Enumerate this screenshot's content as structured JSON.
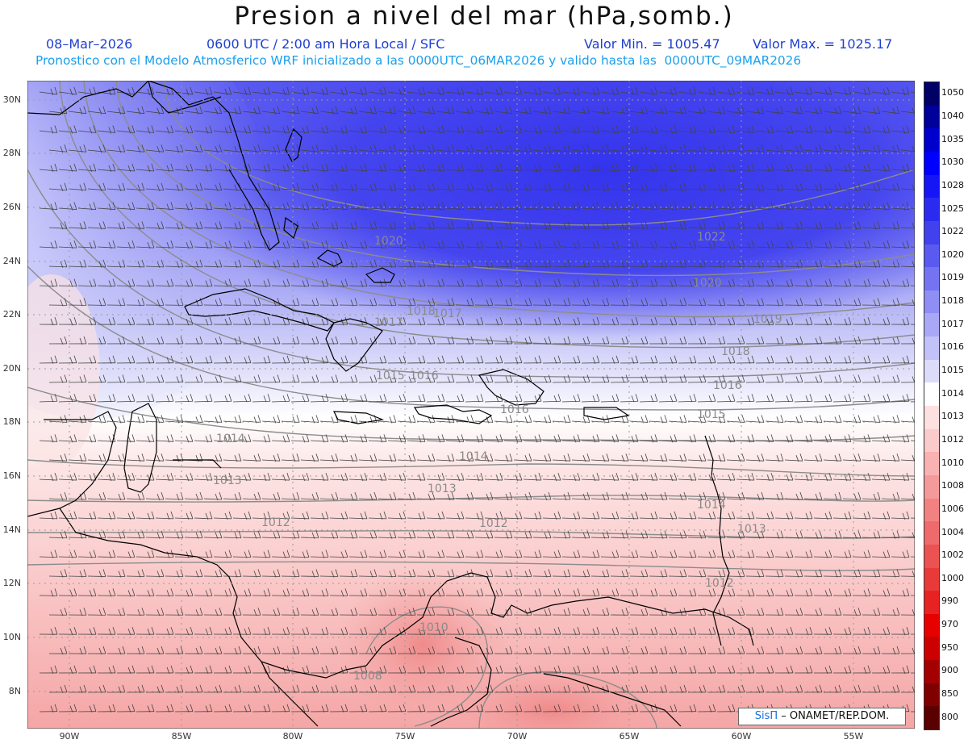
{
  "title": "Presion a nivel del mar (hPa,somb.)",
  "subtitle": {
    "date": "08–Mar–2026",
    "time": "0600 UTC / 2:00 am Hora Local / SFC",
    "min_label": "Valor Min. = 1005.47",
    "max_label": "Valor Max. = 1025.17",
    "model_line": "Pronostico con el Modelo Atmosferico WRF inicializado a las 0000UTC_06MAR2026 y valido hasta las  0000UTC_09MAR2026"
  },
  "lat_labels": [
    "30N",
    "28N",
    "26N",
    "24N",
    "22N",
    "20N",
    "18N",
    "16N",
    "14N",
    "12N",
    "10N",
    "8N"
  ],
  "lon_labels": [
    "90W",
    "85W",
    "80W",
    "75W",
    "70W",
    "65W",
    "60W",
    "55W"
  ],
  "colorbar": {
    "labels": [
      "1050",
      "1040",
      "1035",
      "1030",
      "1028",
      "1025",
      "1022",
      "1020",
      "1019",
      "1018",
      "1017",
      "1016",
      "1015",
      "1014",
      "1013",
      "1012",
      "1010",
      "1008",
      "1006",
      "1004",
      "1002",
      "1000",
      "990",
      "970",
      "950",
      "900",
      "850",
      "800"
    ],
    "colors": [
      "#000066",
      "#00009a",
      "#0000cc",
      "#0000ff",
      "#1515f5",
      "#2b2bf0",
      "#4141ee",
      "#5a5af0",
      "#7474f2",
      "#8e8ef4",
      "#a8a8f6",
      "#c2c2f8",
      "#dcdcfa",
      "#ffffff",
      "#fde0e0",
      "#fbcaca",
      "#f8b2b2",
      "#f59a9a",
      "#f28282",
      "#ef6a6a",
      "#ec5252",
      "#e93a3a",
      "#e62222",
      "#e60000",
      "#cc0000",
      "#a30000",
      "#800000",
      "#5a0000"
    ]
  },
  "isobars": [
    {
      "label": "1022"
    },
    {
      "label": "1020"
    },
    {
      "label": "1020"
    },
    {
      "label": "1018"
    },
    {
      "label": "1018"
    },
    {
      "label": "1017"
    },
    {
      "label": "1017"
    },
    {
      "label": "1016"
    },
    {
      "label": "1016"
    },
    {
      "label": "1015"
    },
    {
      "label": "1015"
    },
    {
      "label": "1014"
    },
    {
      "label": "1014"
    },
    {
      "label": "1014"
    },
    {
      "label": "1013"
    },
    {
      "label": "1013"
    },
    {
      "label": "1013"
    },
    {
      "label": "1012"
    },
    {
      "label": "1012"
    },
    {
      "label": "1012"
    },
    {
      "label": "1010"
    },
    {
      "label": "1008"
    },
    {
      "label": "1019"
    },
    {
      "label": "1016"
    }
  ],
  "footer": {
    "brand": "SisΠ",
    "org": " – ONAMET/REP.DOM."
  }
}
